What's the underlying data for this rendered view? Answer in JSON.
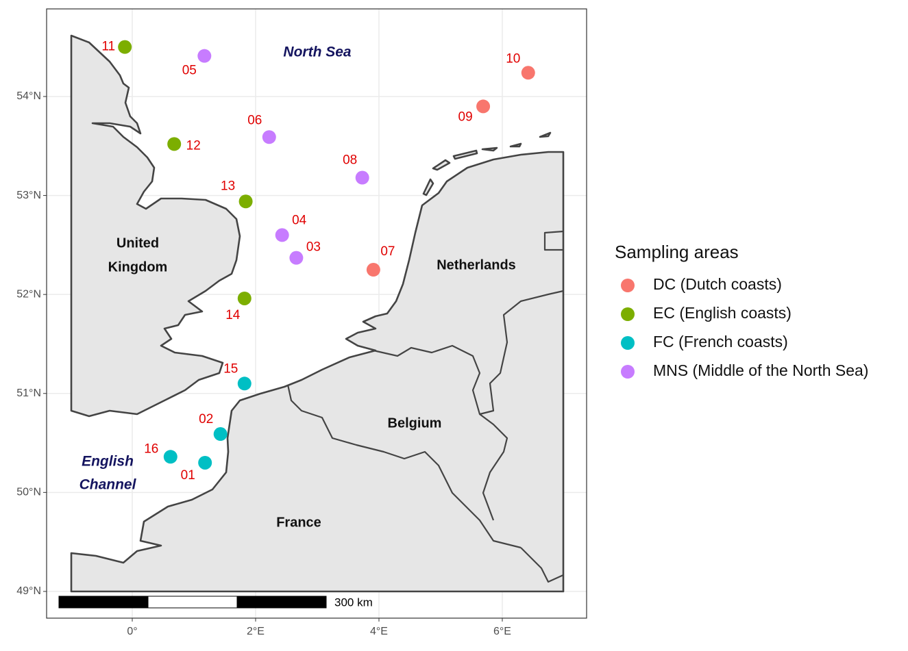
{
  "chart_data": {
    "type": "scatter",
    "xlim": [
      -1.389,
      7.367
    ],
    "ylim": [
      48.73,
      54.885
    ],
    "xticks": [
      {
        "value": 0,
        "label": "0°"
      },
      {
        "value": 2,
        "label": "2°E"
      },
      {
        "value": 4,
        "label": "4°E"
      },
      {
        "value": 6,
        "label": "6°E"
      }
    ],
    "yticks": [
      {
        "value": 49,
        "label": "49°N"
      },
      {
        "value": 50,
        "label": "50°N"
      },
      {
        "value": 51,
        "label": "51°N"
      },
      {
        "value": 52,
        "label": "52°N"
      },
      {
        "value": 53,
        "label": "53°N"
      },
      {
        "value": 54,
        "label": "54°N"
      }
    ],
    "grid": true,
    "legend_title": "Sampling areas",
    "legend_position": "right",
    "series": [
      {
        "name": "DC (Dutch coasts)",
        "color": "#F8766D",
        "labels": [
          "10",
          "09",
          "07"
        ],
        "x": [
          6.42,
          5.69,
          3.91
        ],
        "y": [
          54.24,
          53.9,
          52.25
        ]
      },
      {
        "name": "EC (English coasts)",
        "color": "#7CAE00",
        "labels": [
          "11",
          "12",
          "13",
          "14"
        ],
        "x": [
          -0.12,
          0.68,
          1.84,
          1.82
        ],
        "y": [
          54.5,
          53.52,
          52.94,
          51.96
        ]
      },
      {
        "name": "FC (French coasts)",
        "color": "#00BFC4",
        "labels": [
          "15",
          "02",
          "16",
          "01"
        ],
        "x": [
          1.82,
          1.43,
          0.62,
          1.18
        ],
        "y": [
          51.1,
          50.59,
          50.36,
          50.3
        ]
      },
      {
        "name": "MNS (Middle of the North Sea)",
        "color": "#C77CFF",
        "labels": [
          "05",
          "06",
          "08",
          "04",
          "03"
        ],
        "x": [
          1.17,
          2.22,
          3.73,
          2.43,
          2.66
        ],
        "y": [
          54.41,
          53.59,
          53.18,
          52.6,
          52.37
        ]
      }
    ],
    "annotations": {
      "countries": [
        "United",
        "Kingdom",
        "Netherlands",
        "Belgium",
        "France"
      ],
      "seas": [
        "North Sea",
        "English",
        "Channel"
      ],
      "scale_bar": "300 km"
    }
  }
}
